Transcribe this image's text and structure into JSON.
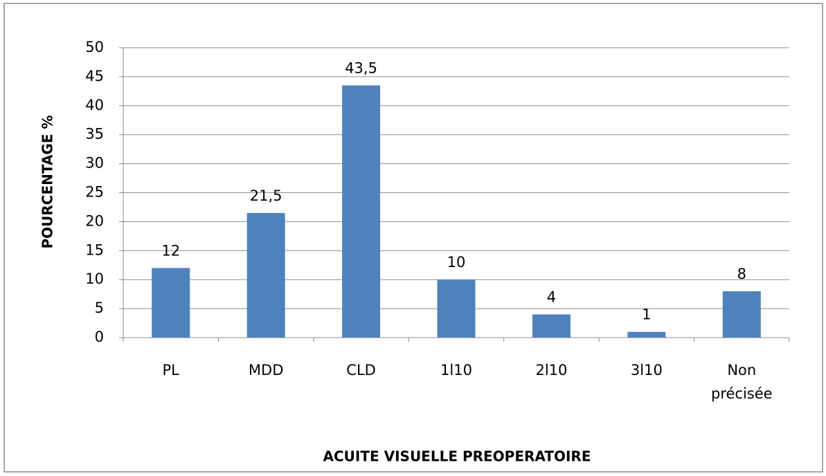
{
  "chart_data": {
    "type": "bar",
    "categories": [
      "PL",
      "MDD",
      "CLD",
      "1l10",
      "2l10",
      "3l10",
      "Non précisée"
    ],
    "values": [
      12,
      21.5,
      43.5,
      10,
      4,
      1,
      8
    ],
    "value_labels": [
      "12",
      "21,5",
      "43,5",
      "10",
      "4",
      "1",
      "8"
    ],
    "color": "#4f81bd",
    "ylim": [
      0,
      50
    ],
    "yticks": [
      0,
      5,
      10,
      15,
      20,
      25,
      30,
      35,
      40,
      45,
      50
    ],
    "grid": true,
    "y_label": "POURCENTAGE %",
    "x_label": "ACUITE VISUELLE PREOPERATOIRE"
  }
}
